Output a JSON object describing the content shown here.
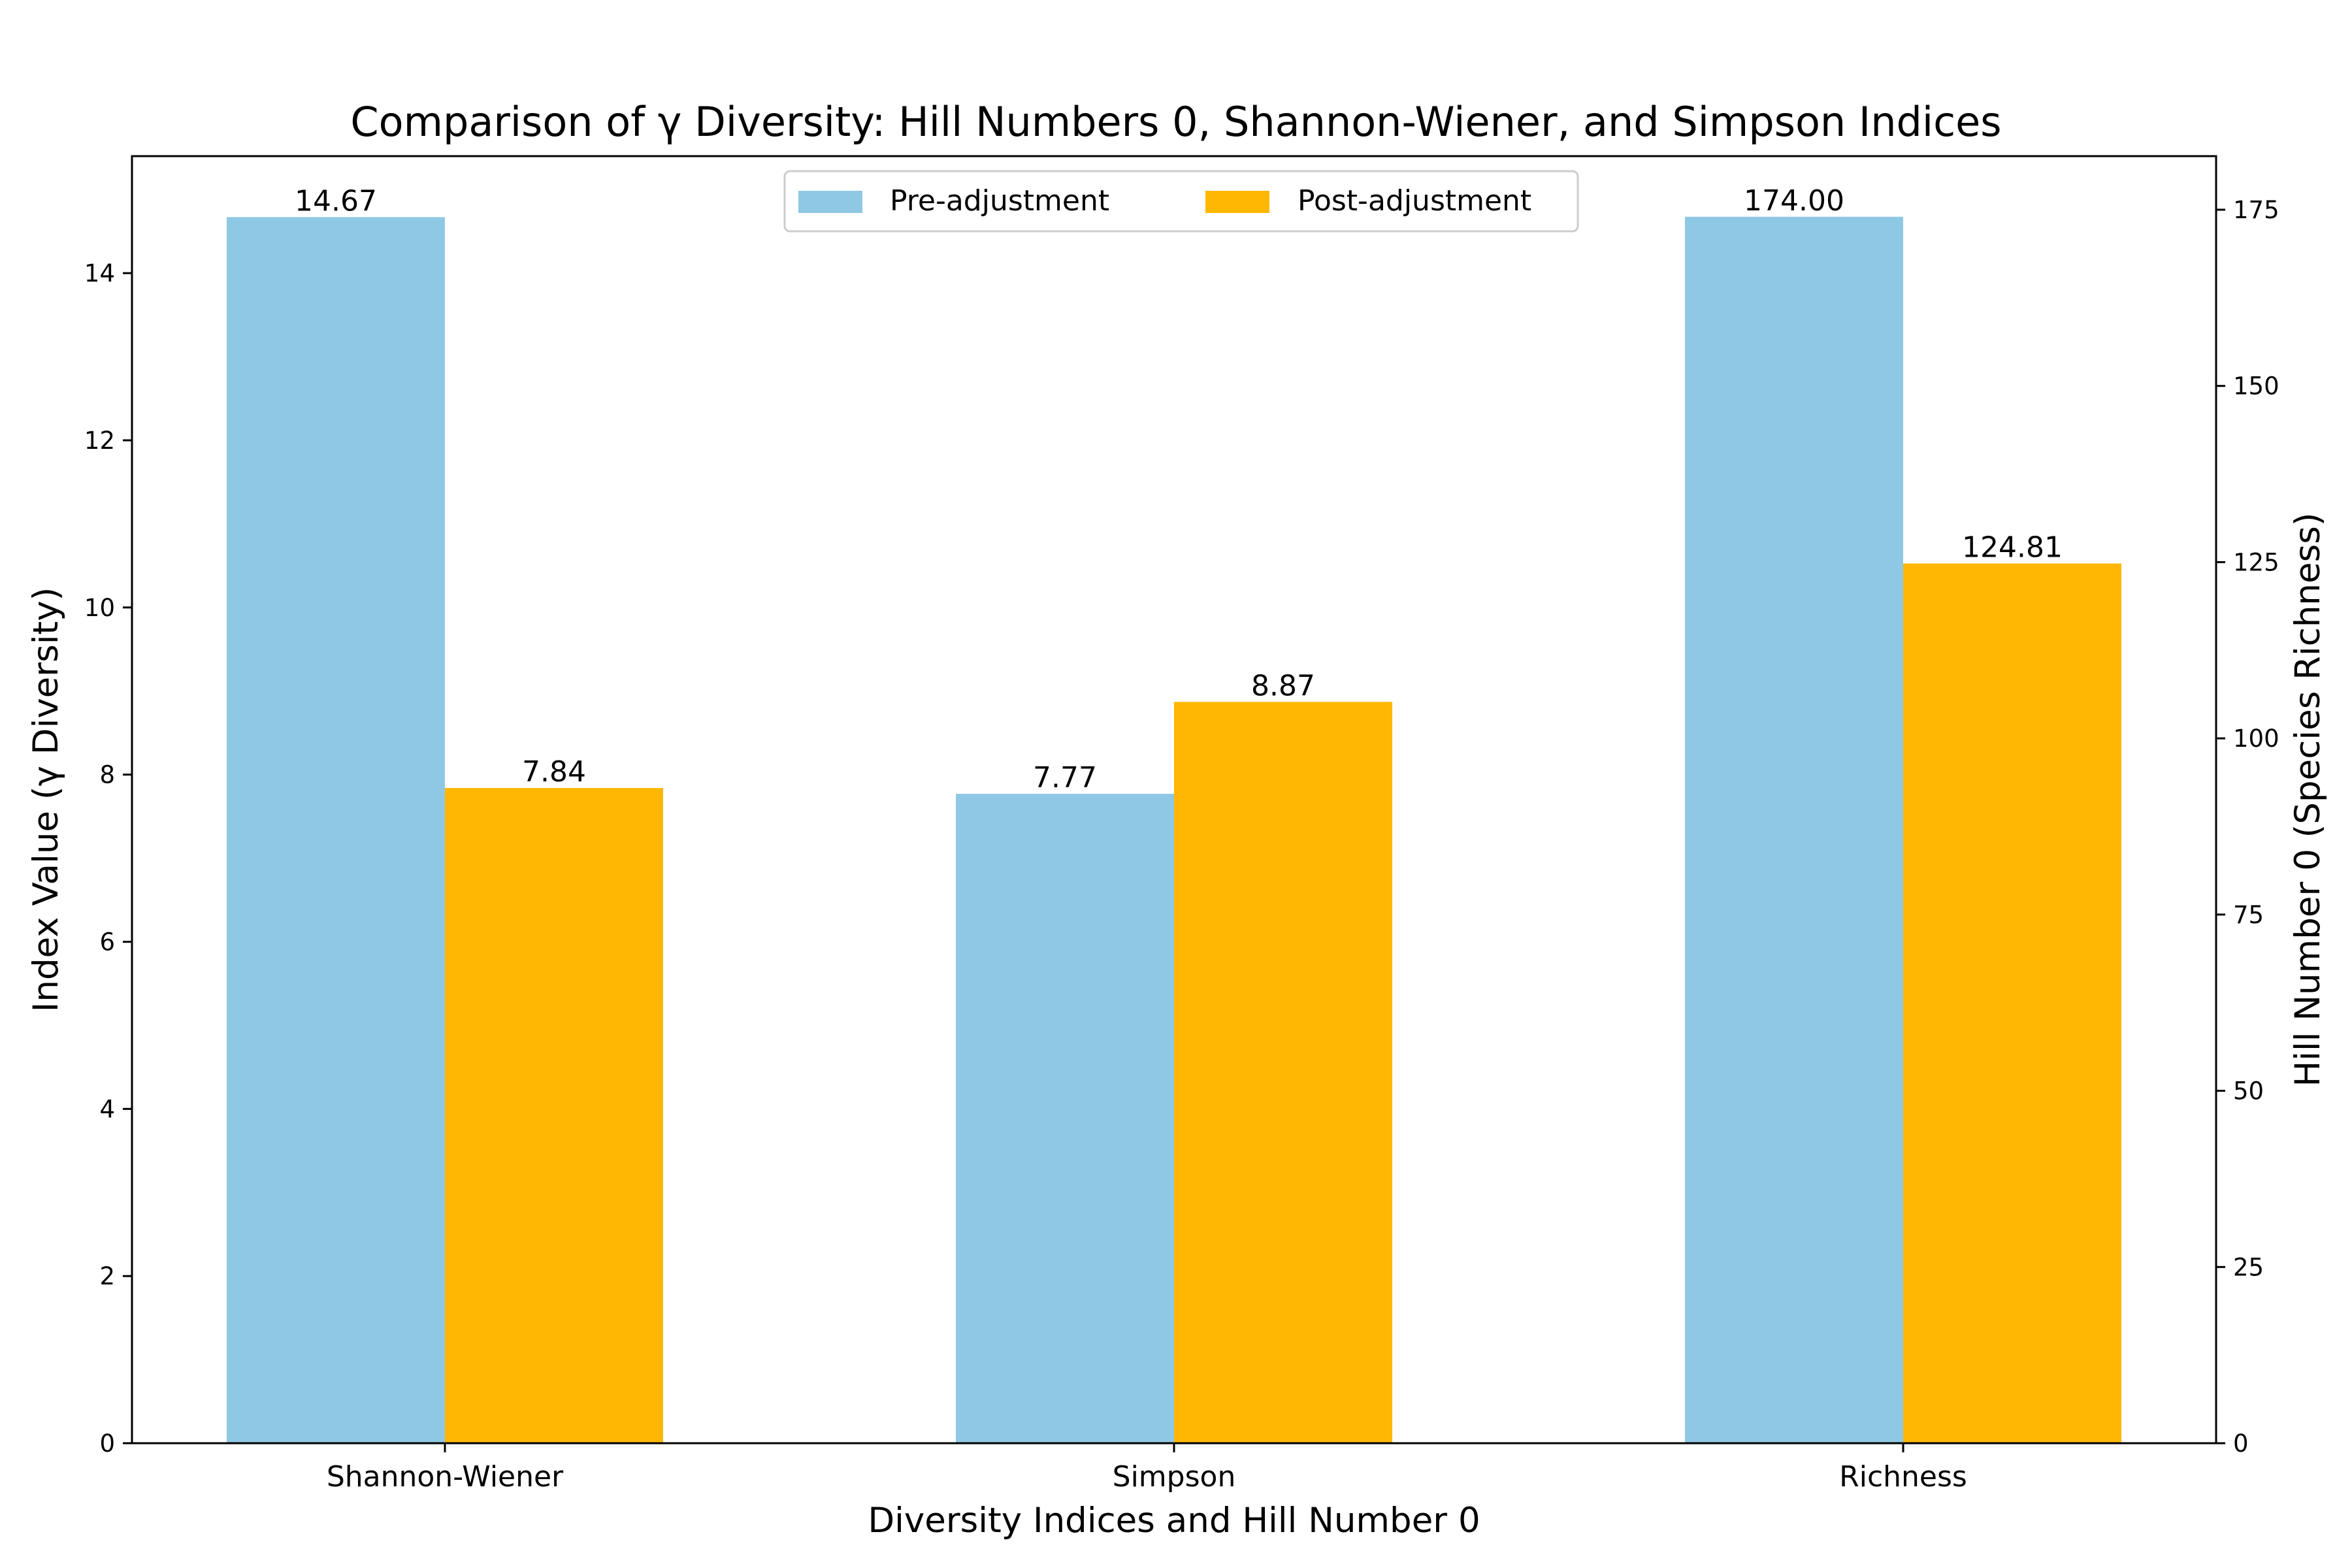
{
  "chart_data": {
    "type": "bar",
    "title": "Comparison of γ Diversity: Hill Numbers 0, Shannon-Wiener, and Simpson Indices",
    "xlabel": "Diversity Indices and Hill Number 0",
    "ylabel": "Index Value (γ Diversity)",
    "ylabel_right": "Hill Number 0 (Species Richness)",
    "categories": [
      "Shannon-Wiener",
      "Simpson",
      "Richness"
    ],
    "series": [
      {
        "name": "Pre-adjustment",
        "color": "#8fc8e5",
        "values": [
          14.67,
          7.77,
          174.0
        ],
        "labels": [
          "14.67",
          "7.77",
          "174.00"
        ]
      },
      {
        "name": "Post-adjustment",
        "color": "#ffb703",
        "values": [
          7.84,
          8.87,
          124.81
        ],
        "labels": [
          "7.84",
          "8.87",
          "124.81"
        ]
      }
    ],
    "category_axis": [
      "left",
      "left",
      "right"
    ],
    "ylim": [
      0,
      15.4
    ],
    "ylim_right": [
      0,
      182.6
    ],
    "yticks": [
      "0",
      "2",
      "4",
      "6",
      "8",
      "10",
      "12",
      "14"
    ],
    "yticks_right": [
      "0",
      "25",
      "50",
      "75",
      "100",
      "125",
      "150",
      "175"
    ],
    "legend": "upper-center",
    "grid": false
  }
}
